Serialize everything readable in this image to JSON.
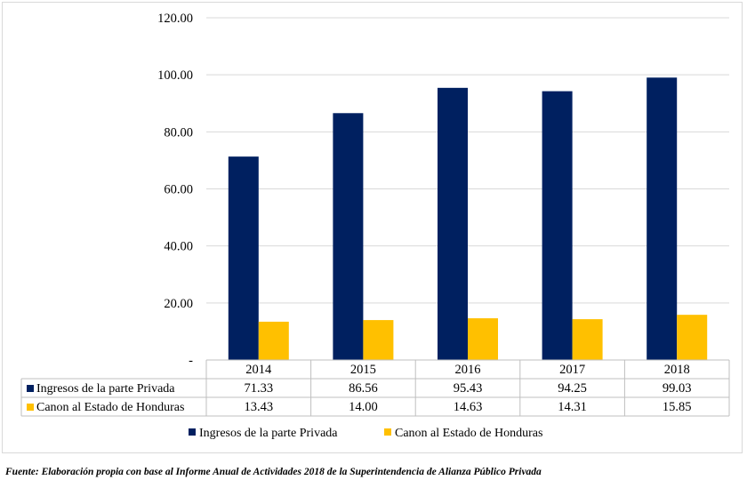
{
  "chart_data": {
    "type": "bar",
    "categories": [
      "2014",
      "2015",
      "2016",
      "2017",
      "2018"
    ],
    "series": [
      {
        "name": "Ingresos de la parte Privada",
        "color": "#002060",
        "values": [
          71.33,
          86.56,
          95.43,
          94.25,
          99.03
        ],
        "labels": [
          "71.33",
          "86.56",
          "95.43",
          "94.25",
          "99.03"
        ]
      },
      {
        "name": "Canon al Estado de Honduras",
        "color": "#FFC000",
        "values": [
          13.43,
          14.0,
          14.63,
          14.31,
          15.85
        ],
        "labels": [
          "13.43",
          "14.00",
          "14.63",
          "14.31",
          "15.85"
        ]
      }
    ],
    "ylim": [
      0,
      120
    ],
    "yticks": [
      0,
      20,
      40,
      60,
      80,
      100,
      120
    ],
    "ytick_labels": [
      "-",
      "20.00",
      "40.00",
      "60.00",
      "80.00",
      "100.00",
      "120.00"
    ],
    "grid": true,
    "data_table": true,
    "legend_position": "bottom",
    "title": "",
    "xlabel": "",
    "ylabel": ""
  },
  "source_note": "Fuente: Elaboración propia con base al Informe Anual de Actividades 2018 de la Superintendencia de Alianza Público Privada"
}
